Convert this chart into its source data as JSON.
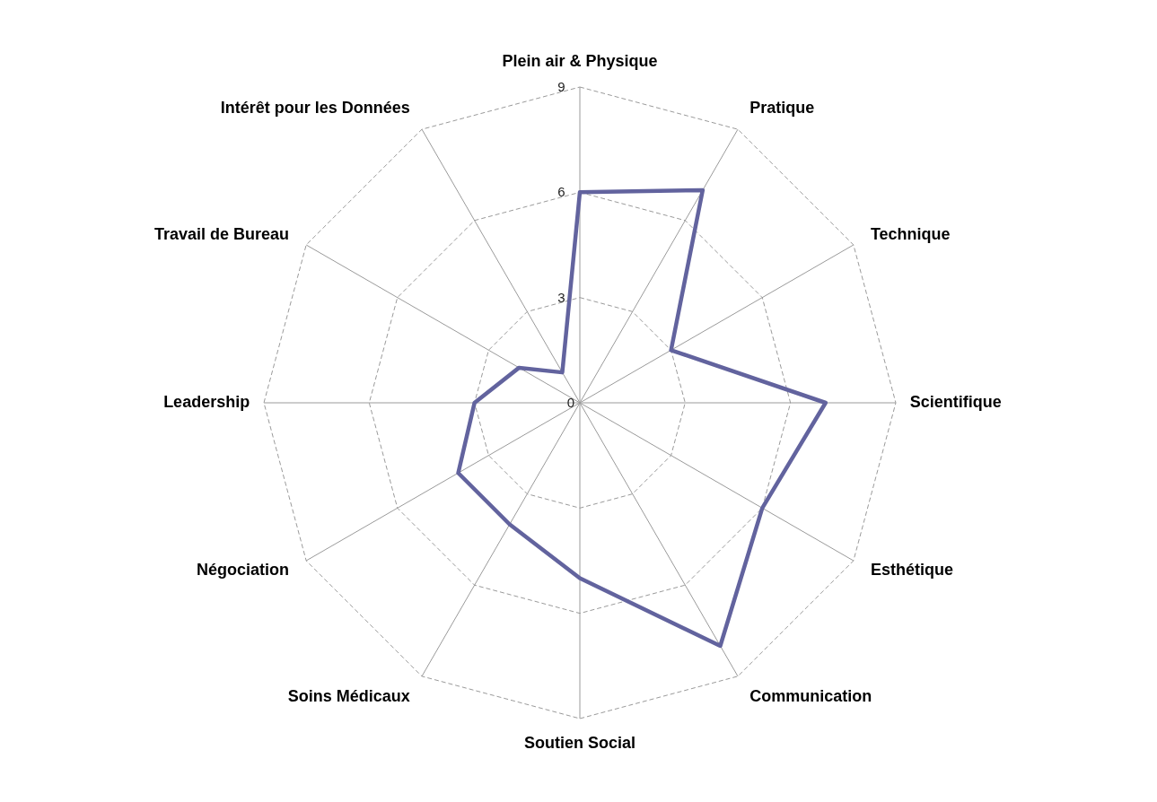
{
  "chart_data": {
    "type": "radar",
    "categories": [
      "Plein air & Physique",
      "Pratique",
      "Technique",
      "Scientifique",
      "Esthétique",
      "Communication",
      "Soutien Social",
      "Soins Médicaux",
      "Négociation",
      "Leadership",
      "Travail de Bureau",
      "Intérêt pour les Données"
    ],
    "series": [
      {
        "color": "#62639e",
        "values": [
          6,
          7,
          3,
          7,
          6,
          8,
          5,
          4,
          4,
          3,
          2,
          1
        ]
      }
    ],
    "ylim": [
      0,
      9
    ],
    "yticks": [
      0,
      3,
      6,
      9
    ],
    "grid": true
  }
}
